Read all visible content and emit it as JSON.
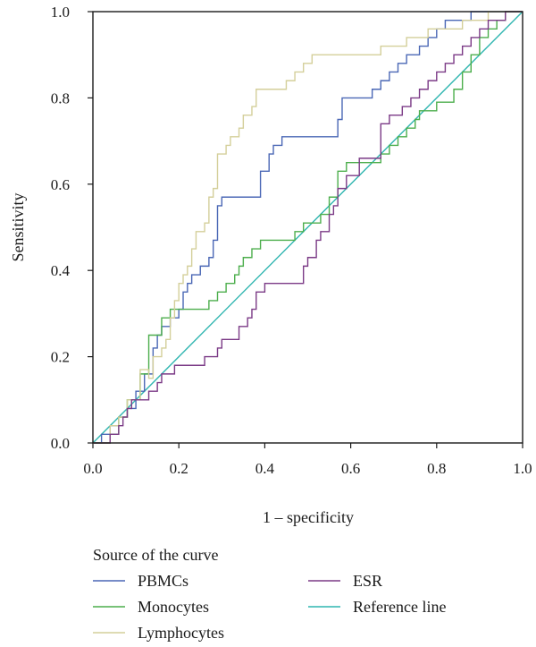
{
  "chart_data": {
    "type": "line",
    "xlabel": "1 – specificity",
    "ylabel": "Sensitivity",
    "xlim": [
      0,
      1
    ],
    "ylim": [
      0,
      1
    ],
    "x_ticks": [
      "0.0",
      "0.2",
      "0.4",
      "0.6",
      "0.8",
      "1.0"
    ],
    "y_ticks": [
      "0.0",
      "0.2",
      "0.4",
      "0.6",
      "0.8",
      "1.0"
    ],
    "grid": false,
    "legend_title": "Source of the curve",
    "legend_placement": "bottom",
    "series": [
      {
        "name": "PBMCs",
        "color": "#4a67b5",
        "points": [
          [
            0,
            0
          ],
          [
            0.02,
            0
          ],
          [
            0.02,
            0.02
          ],
          [
            0.04,
            0.02
          ],
          [
            0.04,
            0.04
          ],
          [
            0.06,
            0.04
          ],
          [
            0.06,
            0.06
          ],
          [
            0.08,
            0.06
          ],
          [
            0.08,
            0.08
          ],
          [
            0.1,
            0.08
          ],
          [
            0.1,
            0.12
          ],
          [
            0.12,
            0.12
          ],
          [
            0.12,
            0.16
          ],
          [
            0.14,
            0.16
          ],
          [
            0.14,
            0.22
          ],
          [
            0.15,
            0.22
          ],
          [
            0.15,
            0.25
          ],
          [
            0.16,
            0.25
          ],
          [
            0.16,
            0.27
          ],
          [
            0.18,
            0.27
          ],
          [
            0.18,
            0.29
          ],
          [
            0.2,
            0.29
          ],
          [
            0.2,
            0.31
          ],
          [
            0.21,
            0.31
          ],
          [
            0.21,
            0.35
          ],
          [
            0.22,
            0.35
          ],
          [
            0.22,
            0.37
          ],
          [
            0.23,
            0.37
          ],
          [
            0.23,
            0.39
          ],
          [
            0.25,
            0.39
          ],
          [
            0.25,
            0.41
          ],
          [
            0.27,
            0.41
          ],
          [
            0.27,
            0.43
          ],
          [
            0.28,
            0.43
          ],
          [
            0.28,
            0.47
          ],
          [
            0.29,
            0.47
          ],
          [
            0.29,
            0.55
          ],
          [
            0.3,
            0.55
          ],
          [
            0.3,
            0.57
          ],
          [
            0.39,
            0.57
          ],
          [
            0.39,
            0.63
          ],
          [
            0.41,
            0.63
          ],
          [
            0.41,
            0.67
          ],
          [
            0.42,
            0.67
          ],
          [
            0.42,
            0.69
          ],
          [
            0.44,
            0.69
          ],
          [
            0.44,
            0.71
          ],
          [
            0.57,
            0.71
          ],
          [
            0.57,
            0.75
          ],
          [
            0.58,
            0.75
          ],
          [
            0.58,
            0.8
          ],
          [
            0.65,
            0.8
          ],
          [
            0.65,
            0.82
          ],
          [
            0.67,
            0.82
          ],
          [
            0.67,
            0.84
          ],
          [
            0.69,
            0.84
          ],
          [
            0.69,
            0.86
          ],
          [
            0.71,
            0.86
          ],
          [
            0.71,
            0.88
          ],
          [
            0.73,
            0.88
          ],
          [
            0.73,
            0.9
          ],
          [
            0.76,
            0.9
          ],
          [
            0.76,
            0.92
          ],
          [
            0.78,
            0.92
          ],
          [
            0.78,
            0.94
          ],
          [
            0.8,
            0.94
          ],
          [
            0.8,
            0.96
          ],
          [
            0.82,
            0.96
          ],
          [
            0.82,
            0.98
          ],
          [
            0.88,
            0.98
          ],
          [
            0.88,
            1
          ],
          [
            1,
            1
          ]
        ]
      },
      {
        "name": "Monocytes",
        "color": "#4cae4c",
        "points": [
          [
            0,
            0
          ],
          [
            0.04,
            0
          ],
          [
            0.04,
            0.02
          ],
          [
            0.06,
            0.02
          ],
          [
            0.06,
            0.06
          ],
          [
            0.08,
            0.06
          ],
          [
            0.08,
            0.1
          ],
          [
            0.11,
            0.1
          ],
          [
            0.11,
            0.16
          ],
          [
            0.13,
            0.16
          ],
          [
            0.13,
            0.25
          ],
          [
            0.16,
            0.25
          ],
          [
            0.16,
            0.29
          ],
          [
            0.18,
            0.29
          ],
          [
            0.18,
            0.31
          ],
          [
            0.27,
            0.31
          ],
          [
            0.27,
            0.33
          ],
          [
            0.29,
            0.33
          ],
          [
            0.29,
            0.35
          ],
          [
            0.31,
            0.35
          ],
          [
            0.31,
            0.37
          ],
          [
            0.33,
            0.37
          ],
          [
            0.33,
            0.39
          ],
          [
            0.34,
            0.39
          ],
          [
            0.34,
            0.41
          ],
          [
            0.35,
            0.41
          ],
          [
            0.35,
            0.43
          ],
          [
            0.37,
            0.43
          ],
          [
            0.37,
            0.45
          ],
          [
            0.39,
            0.45
          ],
          [
            0.39,
            0.47
          ],
          [
            0.47,
            0.47
          ],
          [
            0.47,
            0.49
          ],
          [
            0.49,
            0.49
          ],
          [
            0.49,
            0.51
          ],
          [
            0.53,
            0.51
          ],
          [
            0.53,
            0.53
          ],
          [
            0.55,
            0.53
          ],
          [
            0.55,
            0.57
          ],
          [
            0.57,
            0.57
          ],
          [
            0.57,
            0.63
          ],
          [
            0.59,
            0.63
          ],
          [
            0.59,
            0.65
          ],
          [
            0.67,
            0.65
          ],
          [
            0.67,
            0.67
          ],
          [
            0.69,
            0.67
          ],
          [
            0.69,
            0.69
          ],
          [
            0.71,
            0.69
          ],
          [
            0.71,
            0.71
          ],
          [
            0.73,
            0.71
          ],
          [
            0.73,
            0.73
          ],
          [
            0.75,
            0.73
          ],
          [
            0.75,
            0.75
          ],
          [
            0.76,
            0.75
          ],
          [
            0.76,
            0.77
          ],
          [
            0.8,
            0.77
          ],
          [
            0.8,
            0.79
          ],
          [
            0.84,
            0.79
          ],
          [
            0.84,
            0.82
          ],
          [
            0.86,
            0.82
          ],
          [
            0.86,
            0.86
          ],
          [
            0.88,
            0.86
          ],
          [
            0.88,
            0.9
          ],
          [
            0.9,
            0.9
          ],
          [
            0.9,
            0.94
          ],
          [
            0.92,
            0.94
          ],
          [
            0.92,
            0.96
          ],
          [
            0.94,
            0.96
          ],
          [
            0.94,
            0.98
          ],
          [
            0.96,
            0.98
          ],
          [
            0.96,
            1
          ],
          [
            1,
            1
          ]
        ]
      },
      {
        "name": "Lymphocytes",
        "color": "#d4cf9a",
        "points": [
          [
            0,
            0
          ],
          [
            0.04,
            0
          ],
          [
            0.04,
            0.04
          ],
          [
            0.06,
            0.04
          ],
          [
            0.06,
            0.06
          ],
          [
            0.08,
            0.06
          ],
          [
            0.08,
            0.1
          ],
          [
            0.11,
            0.1
          ],
          [
            0.11,
            0.17
          ],
          [
            0.13,
            0.17
          ],
          [
            0.13,
            0.15
          ],
          [
            0.14,
            0.15
          ],
          [
            0.14,
            0.2
          ],
          [
            0.16,
            0.2
          ],
          [
            0.16,
            0.22
          ],
          [
            0.17,
            0.22
          ],
          [
            0.17,
            0.24
          ],
          [
            0.18,
            0.24
          ],
          [
            0.18,
            0.29
          ],
          [
            0.19,
            0.29
          ],
          [
            0.19,
            0.33
          ],
          [
            0.2,
            0.33
          ],
          [
            0.2,
            0.37
          ],
          [
            0.21,
            0.37
          ],
          [
            0.21,
            0.39
          ],
          [
            0.22,
            0.39
          ],
          [
            0.22,
            0.41
          ],
          [
            0.23,
            0.41
          ],
          [
            0.23,
            0.45
          ],
          [
            0.24,
            0.45
          ],
          [
            0.24,
            0.49
          ],
          [
            0.26,
            0.49
          ],
          [
            0.26,
            0.51
          ],
          [
            0.27,
            0.51
          ],
          [
            0.27,
            0.57
          ],
          [
            0.28,
            0.57
          ],
          [
            0.28,
            0.59
          ],
          [
            0.29,
            0.59
          ],
          [
            0.29,
            0.67
          ],
          [
            0.31,
            0.67
          ],
          [
            0.31,
            0.69
          ],
          [
            0.32,
            0.69
          ],
          [
            0.32,
            0.71
          ],
          [
            0.34,
            0.71
          ],
          [
            0.34,
            0.73
          ],
          [
            0.35,
            0.73
          ],
          [
            0.35,
            0.76
          ],
          [
            0.37,
            0.76
          ],
          [
            0.37,
            0.78
          ],
          [
            0.38,
            0.78
          ],
          [
            0.38,
            0.82
          ],
          [
            0.45,
            0.82
          ],
          [
            0.45,
            0.84
          ],
          [
            0.47,
            0.84
          ],
          [
            0.47,
            0.86
          ],
          [
            0.49,
            0.86
          ],
          [
            0.49,
            0.88
          ],
          [
            0.51,
            0.88
          ],
          [
            0.51,
            0.9
          ],
          [
            0.67,
            0.9
          ],
          [
            0.67,
            0.92
          ],
          [
            0.73,
            0.92
          ],
          [
            0.73,
            0.94
          ],
          [
            0.78,
            0.94
          ],
          [
            0.78,
            0.96
          ],
          [
            0.86,
            0.96
          ],
          [
            0.86,
            0.98
          ],
          [
            0.92,
            0.98
          ],
          [
            0.92,
            1
          ],
          [
            1,
            1
          ]
        ]
      },
      {
        "name": "ESR",
        "color": "#7b3a86",
        "points": [
          [
            0,
            0
          ],
          [
            0.04,
            0
          ],
          [
            0.04,
            0.02
          ],
          [
            0.06,
            0.02
          ],
          [
            0.06,
            0.04
          ],
          [
            0.07,
            0.04
          ],
          [
            0.07,
            0.06
          ],
          [
            0.08,
            0.06
          ],
          [
            0.08,
            0.08
          ],
          [
            0.09,
            0.08
          ],
          [
            0.09,
            0.1
          ],
          [
            0.13,
            0.1
          ],
          [
            0.13,
            0.12
          ],
          [
            0.15,
            0.12
          ],
          [
            0.15,
            0.14
          ],
          [
            0.16,
            0.14
          ],
          [
            0.16,
            0.16
          ],
          [
            0.19,
            0.16
          ],
          [
            0.19,
            0.18
          ],
          [
            0.26,
            0.18
          ],
          [
            0.26,
            0.2
          ],
          [
            0.29,
            0.2
          ],
          [
            0.29,
            0.22
          ],
          [
            0.3,
            0.22
          ],
          [
            0.3,
            0.24
          ],
          [
            0.34,
            0.24
          ],
          [
            0.34,
            0.27
          ],
          [
            0.36,
            0.27
          ],
          [
            0.36,
            0.29
          ],
          [
            0.37,
            0.29
          ],
          [
            0.37,
            0.31
          ],
          [
            0.38,
            0.31
          ],
          [
            0.38,
            0.35
          ],
          [
            0.4,
            0.35
          ],
          [
            0.4,
            0.37
          ],
          [
            0.49,
            0.37
          ],
          [
            0.49,
            0.41
          ],
          [
            0.5,
            0.41
          ],
          [
            0.5,
            0.43
          ],
          [
            0.52,
            0.43
          ],
          [
            0.52,
            0.47
          ],
          [
            0.53,
            0.47
          ],
          [
            0.53,
            0.49
          ],
          [
            0.55,
            0.49
          ],
          [
            0.55,
            0.53
          ],
          [
            0.56,
            0.53
          ],
          [
            0.56,
            0.55
          ],
          [
            0.57,
            0.55
          ],
          [
            0.57,
            0.59
          ],
          [
            0.59,
            0.59
          ],
          [
            0.59,
            0.62
          ],
          [
            0.62,
            0.62
          ],
          [
            0.62,
            0.66
          ],
          [
            0.67,
            0.66
          ],
          [
            0.67,
            0.74
          ],
          [
            0.69,
            0.74
          ],
          [
            0.69,
            0.76
          ],
          [
            0.72,
            0.76
          ],
          [
            0.72,
            0.78
          ],
          [
            0.74,
            0.78
          ],
          [
            0.74,
            0.8
          ],
          [
            0.76,
            0.8
          ],
          [
            0.76,
            0.82
          ],
          [
            0.78,
            0.82
          ],
          [
            0.78,
            0.84
          ],
          [
            0.8,
            0.84
          ],
          [
            0.8,
            0.86
          ],
          [
            0.82,
            0.86
          ],
          [
            0.82,
            0.88
          ],
          [
            0.84,
            0.88
          ],
          [
            0.84,
            0.9
          ],
          [
            0.86,
            0.9
          ],
          [
            0.86,
            0.92
          ],
          [
            0.88,
            0.92
          ],
          [
            0.88,
            0.94
          ],
          [
            0.9,
            0.94
          ],
          [
            0.9,
            0.96
          ],
          [
            0.92,
            0.96
          ],
          [
            0.92,
            0.98
          ],
          [
            0.96,
            0.98
          ],
          [
            0.96,
            1
          ],
          [
            1,
            1
          ]
        ]
      },
      {
        "name": "Reference line",
        "color": "#2fb5b0",
        "points": [
          [
            0,
            0
          ],
          [
            1,
            1
          ]
        ]
      }
    ]
  }
}
